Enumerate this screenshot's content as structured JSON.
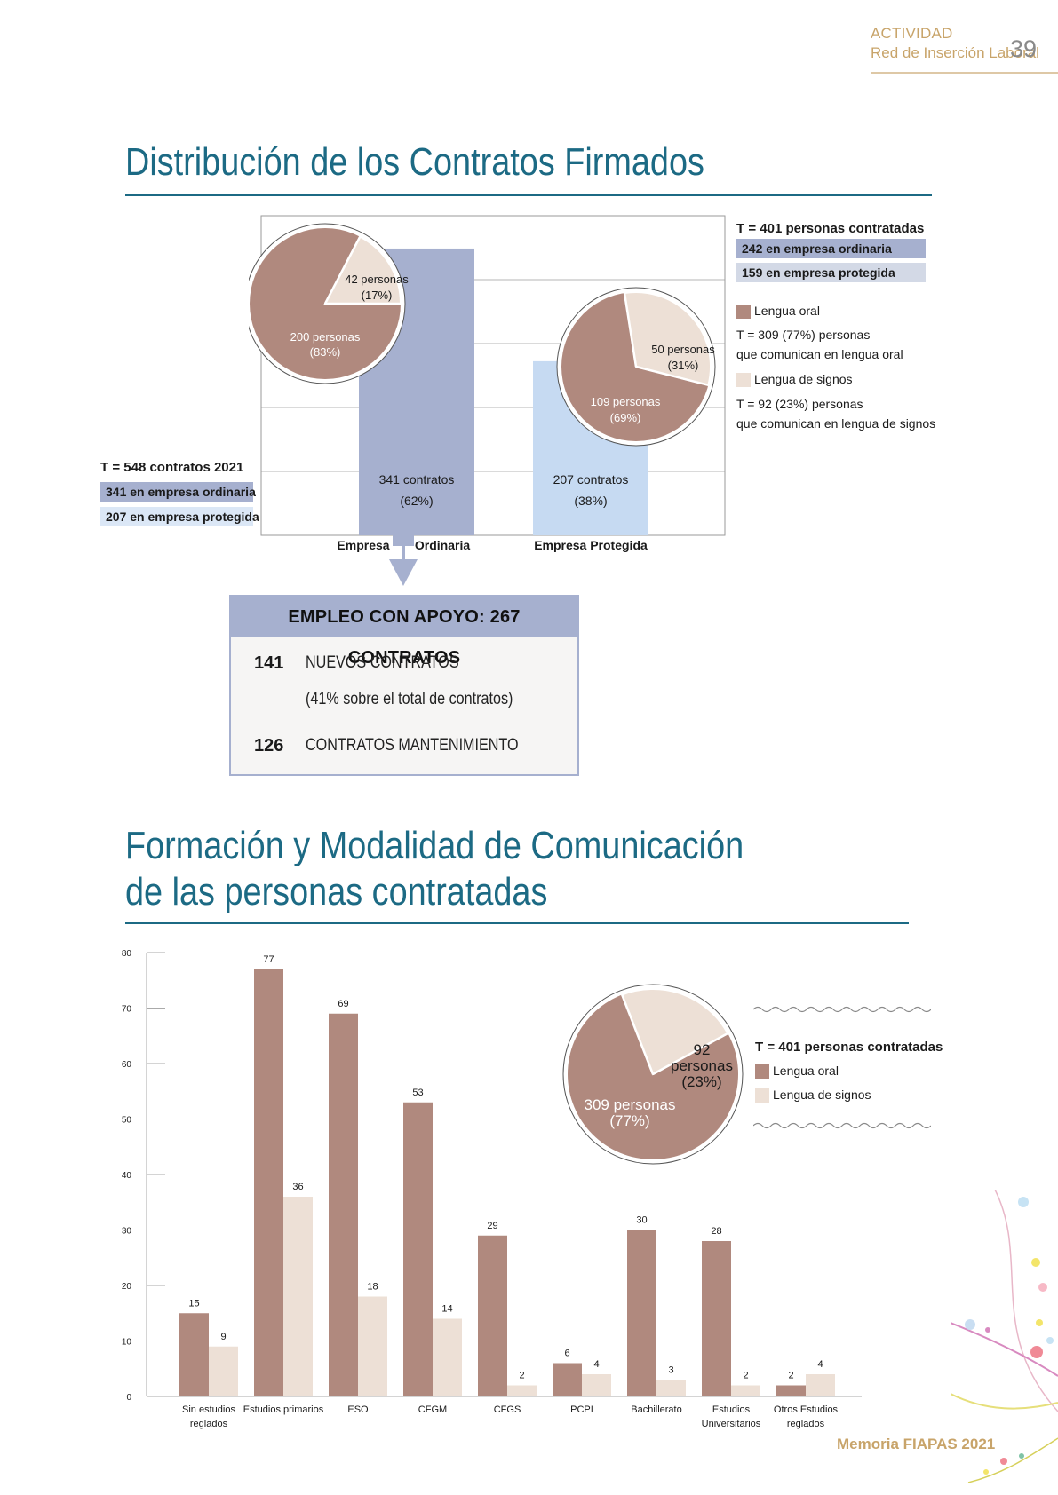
{
  "header": {
    "section": "ACTIVIDAD",
    "subsection": "Red de Inserción Laboral",
    "page": "39"
  },
  "footer": "Memoria FIAPAS 2021",
  "section1": {
    "title": "Distribución de los Contratos Firmados",
    "left_legend": {
      "total": "T = 548 contratos 2021",
      "ordinary": "341 en empresa ordinaria",
      "protected": "207 en empresa protegida"
    },
    "right_legend": {
      "total": "T = 401 personas contratadas",
      "ordinary": "242 en empresa ordinaria",
      "protected": "159 en empresa protegida",
      "oral_label": "Lengua oral",
      "oral_line1": "T = 309 (77%) personas",
      "oral_line2": "que comunican en lengua oral",
      "signs_label": "Lengua de signos",
      "signs_line1": "T = 92 (23%) personas",
      "signs_line2": "que comunican en lengua de signos"
    },
    "support": {
      "title": "EMPLEO CON APOYO: 267 CONTRATOS",
      "row1_num": "141",
      "row1_text": "NUEVOS CONTRATOS",
      "row1_note": "(41% sobre el total de contratos)",
      "row2_num": "126",
      "row2_text": "CONTRATOS MANTENIMIENTO"
    }
  },
  "section2": {
    "title_line1": "Formación y Modalidad de Comunicación",
    "title_line2": "de las personas contratadas",
    "legend": {
      "total": "T = 401 personas contratadas",
      "oral": "Lengua oral",
      "signs": "Lengua de signos"
    }
  },
  "colors": {
    "oral": "#b0897e",
    "signs": "#ede0d6",
    "ordinary": "#a6b0cf",
    "protected": "#c6daf2",
    "title": "#1c6a84",
    "accent": "#c8a46a"
  },
  "chart_data": [
    {
      "type": "bar",
      "categories": [
        "Empresa Ordinaria",
        "Empresa Protegida"
      ],
      "values": [
        341,
        207
      ],
      "value_labels": [
        "341 contratos",
        "207 contratos"
      ],
      "pct_labels": [
        "(62%)",
        "(38%)"
      ],
      "ylim": [
        0,
        548
      ],
      "grid": true
    },
    {
      "type": "pie",
      "labels": [
        "200 personas",
        "42 personas"
      ],
      "values": [
        200,
        42
      ],
      "pct_labels": [
        "(83%)",
        "(17%)"
      ]
    },
    {
      "type": "pie",
      "labels": [
        "109 personas",
        "50 personas"
      ],
      "values": [
        109,
        50
      ],
      "pct_labels": [
        "(69%)",
        "(31%)"
      ]
    },
    {
      "type": "bar",
      "categories": [
        [
          "Sin estudios",
          "reglados"
        ],
        [
          "Estudios primarios"
        ],
        [
          "ESO"
        ],
        [
          "CFGM"
        ],
        [
          "CFGS"
        ],
        [
          "PCPI"
        ],
        [
          "Bachillerato"
        ],
        [
          "Estudios",
          "Universitarios"
        ],
        [
          "Otros Estudios",
          "reglados"
        ]
      ],
      "series": [
        {
          "name": "Lengua oral",
          "values": [
            15,
            77,
            69,
            53,
            29,
            6,
            30,
            28,
            2
          ]
        },
        {
          "name": "Lengua de signos",
          "values": [
            9,
            36,
            18,
            14,
            2,
            4,
            3,
            2,
            4
          ]
        }
      ],
      "ylim": [
        0,
        80
      ],
      "yticks": [
        0,
        10,
        20,
        30,
        40,
        50,
        60,
        70,
        80
      ]
    },
    {
      "type": "pie",
      "labels": [
        "309 personas",
        "92 personas"
      ],
      "values": [
        309,
        92
      ],
      "pct_labels": [
        "(77%)",
        "(23%)"
      ]
    }
  ]
}
